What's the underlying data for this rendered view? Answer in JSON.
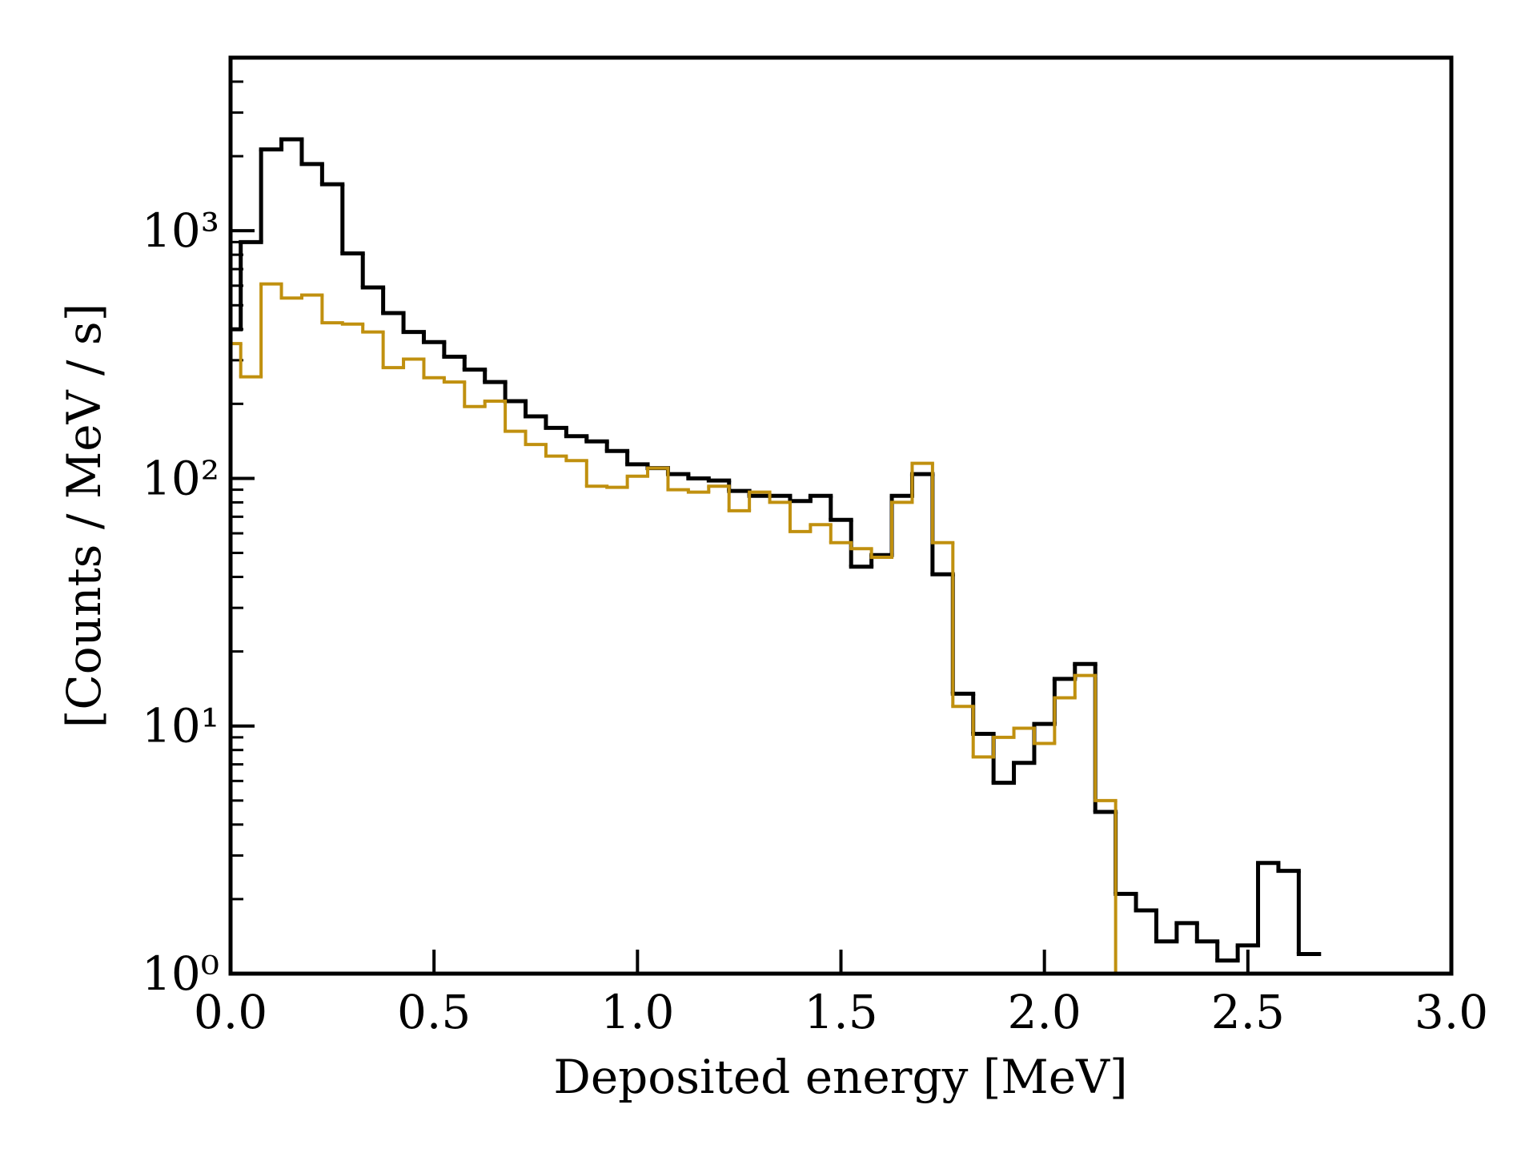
{
  "chart_data": {
    "type": "step",
    "xlabel": "Deposited energy [MeV]",
    "ylabel": "[Counts / MeV / s]",
    "x": [
      0.0,
      0.05,
      0.1,
      0.15,
      0.2,
      0.25,
      0.3,
      0.35,
      0.4,
      0.45,
      0.5,
      0.55,
      0.6,
      0.65,
      0.7,
      0.75,
      0.8,
      0.85,
      0.9,
      0.95,
      1.0,
      1.05,
      1.1,
      1.15,
      1.2,
      1.25,
      1.3,
      1.35,
      1.4,
      1.45,
      1.5,
      1.55,
      1.6,
      1.65,
      1.7,
      1.75,
      1.8,
      1.85,
      1.9,
      1.95,
      2.0,
      2.05,
      2.1,
      2.15,
      2.2,
      2.25,
      2.3,
      2.35,
      2.4,
      2.45,
      2.5,
      2.55,
      2.6,
      2.65
    ],
    "series": [
      {
        "color": "#000000",
        "values": [
          400,
          900,
          2130,
          2340,
          1860,
          1540,
          810,
          590,
          465,
          390,
          355,
          310,
          275,
          245,
          205,
          178,
          160,
          148,
          141,
          129,
          114,
          110,
          104,
          100,
          98,
          89,
          85,
          85,
          81,
          85,
          68,
          44,
          49,
          85,
          104,
          41,
          13.5,
          9.3,
          5.9,
          7.1,
          10.2,
          15.5,
          17.8,
          4.5,
          2.1,
          1.8,
          1.35,
          1.6,
          1.35,
          1.13,
          1.3,
          2.8,
          2.6,
          1.2
        ]
      },
      {
        "color": "#c0900f",
        "values": [
          350,
          257,
          610,
          535,
          550,
          425,
          420,
          390,
          280,
          303,
          255,
          245,
          195,
          205,
          155,
          137,
          123,
          118,
          93,
          92,
          102,
          110,
          90,
          88,
          93,
          74,
          88,
          80,
          61,
          65,
          55,
          52,
          48,
          80,
          115,
          55,
          12,
          7.5,
          9,
          9.8,
          8.5,
          13,
          16,
          5,
          1.0,
          null,
          null,
          null,
          null,
          null,
          null,
          null,
          null,
          null
        ]
      }
    ],
    "xlim": [
      0,
      3
    ],
    "xticks": [
      {
        "value": 0,
        "label": "0.0"
      },
      0.5,
      {
        "value": 1,
        "label": "1.0"
      },
      1.5,
      {
        "value": 2,
        "label": "2.0"
      },
      2.5,
      {
        "value": 3,
        "label": "3.0"
      }
    ],
    "ylim": [
      1,
      5000
    ],
    "yticks": [
      {
        "value": 1,
        "label": "10⁰"
      },
      {
        "value": 10,
        "label": "10¹"
      },
      {
        "value": 100,
        "label": "10²"
      },
      {
        "value": 1000,
        "label": "10³"
      }
    ],
    "yminorticks": [
      2,
      3,
      4,
      5,
      6,
      7,
      8,
      9,
      20,
      30,
      40,
      50,
      60,
      70,
      80,
      90,
      200,
      300,
      400,
      500,
      600,
      700,
      800,
      900,
      2000,
      3000,
      4000
    ],
    "yscale": "log"
  }
}
